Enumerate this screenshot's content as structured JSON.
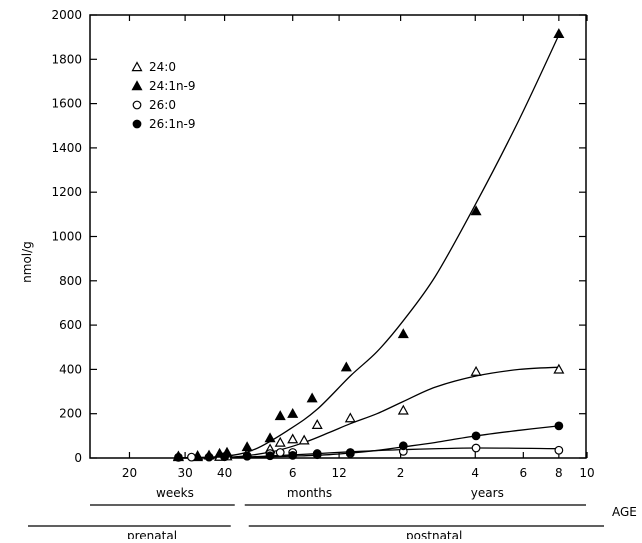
{
  "chart_data": {
    "type": "scatter",
    "ylabel": "nmol/g",
    "ylim": [
      0,
      2000
    ],
    "y_ticks": [
      0,
      200,
      400,
      600,
      800,
      1000,
      1200,
      1400,
      1600,
      1800,
      2000
    ],
    "y_tick_labels": [
      "0",
      "200",
      "400",
      "600",
      "800",
      "1000",
      "1200",
      "1400",
      "1600",
      "1800",
      "2000"
    ],
    "x_scale": "logarithmic, days from conception",
    "xlim_days": [
      105,
      3900
    ],
    "x_ticks": [
      {
        "label": "20",
        "days": 140
      },
      {
        "label": "30",
        "days": 210
      },
      {
        "label": "40",
        "days": 280
      },
      {
        "label": "6",
        "days": 460
      },
      {
        "label": "12",
        "days": 645
      },
      {
        "label": "2",
        "days": 1010
      },
      {
        "label": "4",
        "days": 1740
      },
      {
        "label": "6",
        "days": 2470
      },
      {
        "label": "8",
        "days": 3200
      },
      {
        "label": "10",
        "days": 3930
      }
    ],
    "unit_labels": [
      {
        "text": "weeks",
        "days": 195
      },
      {
        "text": "months",
        "days": 520
      },
      {
        "text": "years",
        "days": 1900
      }
    ],
    "period_labels": [
      {
        "text": "prenatal",
        "days": 165
      },
      {
        "text": "postnatal",
        "days": 1290
      }
    ],
    "age_label": "AGE",
    "legend": {
      "position": "top-left"
    },
    "series": [
      {
        "name": "24:0",
        "marker": "open-triangle",
        "points": [
          [
            200,
            5
          ],
          [
            230,
            5
          ],
          [
            270,
            6
          ],
          [
            285,
            8
          ],
          [
            330,
            20
          ],
          [
            390,
            40
          ],
          [
            420,
            70
          ],
          [
            460,
            85
          ],
          [
            500,
            80
          ],
          [
            550,
            150
          ],
          [
            700,
            180
          ],
          [
            1030,
            215
          ],
          [
            1750,
            390
          ],
          [
            3200,
            400
          ]
        ],
        "curve": [
          [
            200,
            0
          ],
          [
            300,
            5
          ],
          [
            400,
            30
          ],
          [
            500,
            70
          ],
          [
            600,
            115
          ],
          [
            700,
            155
          ],
          [
            850,
            200
          ],
          [
            1030,
            255
          ],
          [
            1300,
            320
          ],
          [
            1750,
            370
          ],
          [
            2400,
            400
          ],
          [
            3200,
            410
          ]
        ]
      },
      {
        "name": "24:1n-9",
        "marker": "filled-triangle",
        "points": [
          [
            200,
            8
          ],
          [
            230,
            10
          ],
          [
            250,
            12
          ],
          [
            270,
            20
          ],
          [
            285,
            25
          ],
          [
            330,
            50
          ],
          [
            390,
            90
          ],
          [
            420,
            190
          ],
          [
            460,
            200
          ],
          [
            530,
            270
          ],
          [
            680,
            410
          ],
          [
            1030,
            560
          ],
          [
            1750,
            1115
          ],
          [
            3200,
            1915
          ]
        ],
        "curve": [
          [
            200,
            0
          ],
          [
            280,
            8
          ],
          [
            350,
            40
          ],
          [
            450,
            130
          ],
          [
            550,
            220
          ],
          [
            700,
            370
          ],
          [
            850,
            480
          ],
          [
            1030,
            620
          ],
          [
            1300,
            820
          ],
          [
            1750,
            1150
          ],
          [
            2400,
            1530
          ],
          [
            3200,
            1910
          ]
        ]
      },
      {
        "name": "26:0",
        "marker": "open-circle",
        "points": [
          [
            220,
            4
          ],
          [
            280,
            6
          ],
          [
            330,
            10
          ],
          [
            390,
            20
          ],
          [
            420,
            25
          ],
          [
            460,
            25
          ],
          [
            550,
            20
          ],
          [
            700,
            20
          ],
          [
            1030,
            30
          ],
          [
            1750,
            45
          ],
          [
            3200,
            35
          ]
        ],
        "curve": [
          [
            200,
            0
          ],
          [
            300,
            3
          ],
          [
            400,
            10
          ],
          [
            550,
            20
          ],
          [
            700,
            28
          ],
          [
            1030,
            38
          ],
          [
            1750,
            45
          ],
          [
            3200,
            42
          ]
        ]
      },
      {
        "name": "26:1n-9",
        "marker": "filled-circle",
        "points": [
          [
            200,
            3
          ],
          [
            250,
            4
          ],
          [
            280,
            6
          ],
          [
            330,
            8
          ],
          [
            390,
            10
          ],
          [
            460,
            12
          ],
          [
            550,
            15
          ],
          [
            700,
            25
          ],
          [
            1030,
            55
          ],
          [
            1750,
            100
          ],
          [
            3200,
            145
          ]
        ],
        "curve": [
          [
            200,
            0
          ],
          [
            300,
            2
          ],
          [
            450,
            8
          ],
          [
            600,
            15
          ],
          [
            800,
            30
          ],
          [
            1030,
            50
          ],
          [
            1300,
            70
          ],
          [
            1750,
            100
          ],
          [
            2400,
            125
          ],
          [
            3200,
            145
          ]
        ]
      }
    ]
  }
}
